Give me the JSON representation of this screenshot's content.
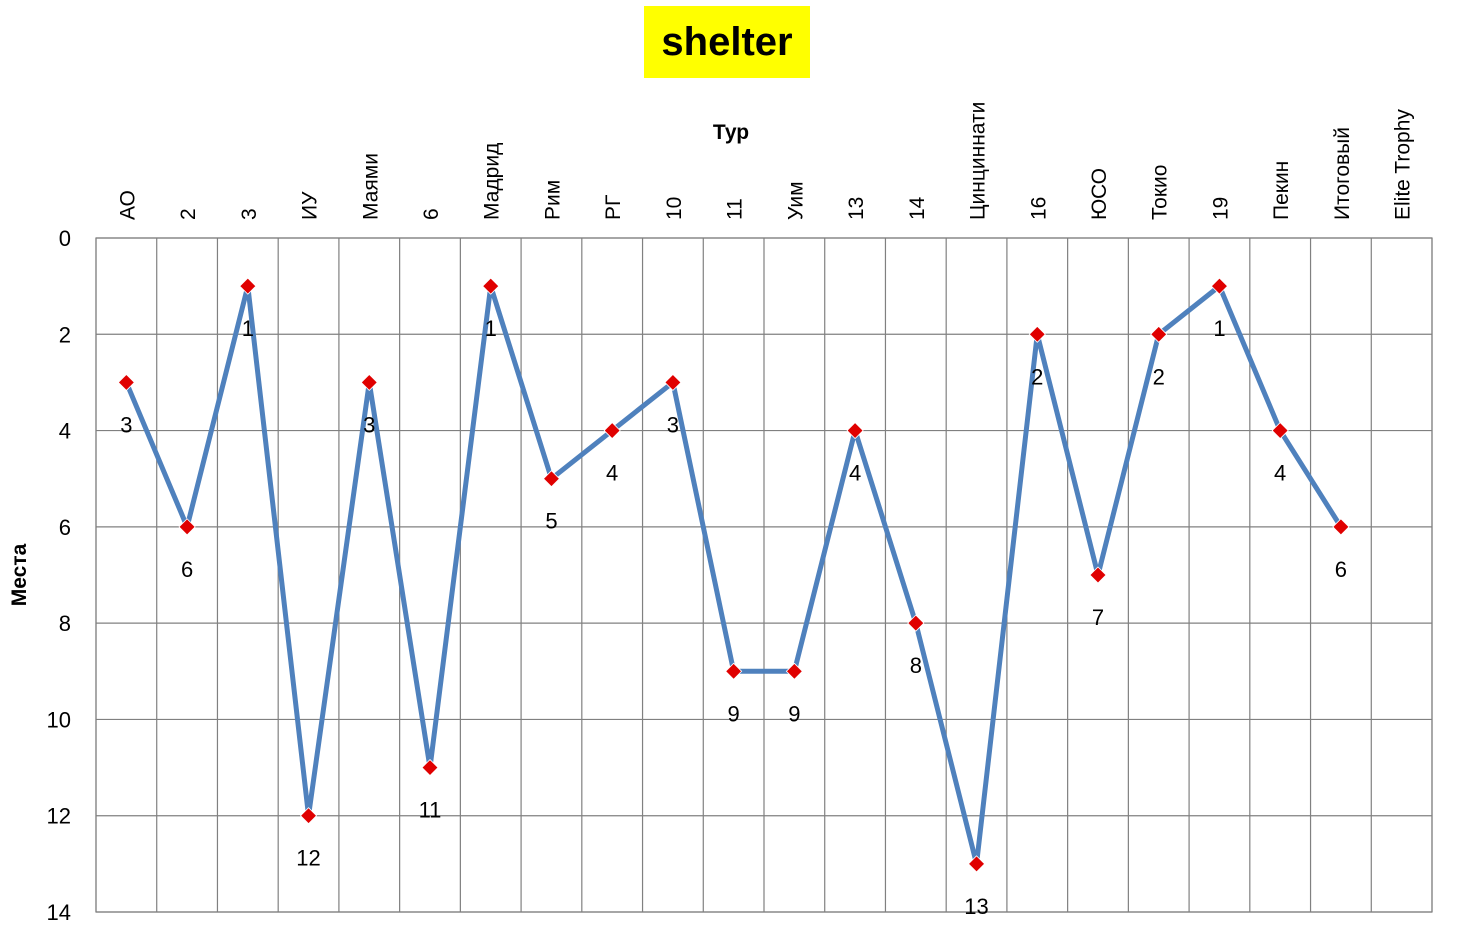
{
  "colors": {
    "title_background": "#ffff00",
    "line": "#4f81bd",
    "marker": "#e00000",
    "grid": "#808080",
    "axis_text": "#000000"
  },
  "chart_data": {
    "type": "line",
    "title": "shelter",
    "xlabel": "Тур",
    "ylabel": "Места",
    "categories": [
      "АО",
      "2",
      "3",
      "ИУ",
      "Маями",
      "6",
      "Мадрид",
      "Рим",
      "РГ",
      "10",
      "11",
      "Уим",
      "13",
      "14",
      "Цинциннати",
      "16",
      "ЮСО",
      "Токио",
      "19",
      "Пекин",
      "Итоговый",
      "Elite Trophy"
    ],
    "series": [
      {
        "values": [
          3,
          6,
          1,
          12,
          3,
          11,
          1,
          5,
          4,
          3,
          9,
          9,
          4,
          8,
          13,
          2,
          7,
          2,
          1,
          4,
          6,
          null
        ]
      }
    ],
    "ylim": [
      0,
      14
    ],
    "y_inverted": true,
    "y_ticks": [
      0,
      2,
      4,
      6,
      8,
      10,
      12,
      14
    ],
    "x_axis_position": "top",
    "x_tick_label_rotation": "vertical",
    "grid": true,
    "data_labels": true,
    "marker": "diamond",
    "legend": "none"
  }
}
